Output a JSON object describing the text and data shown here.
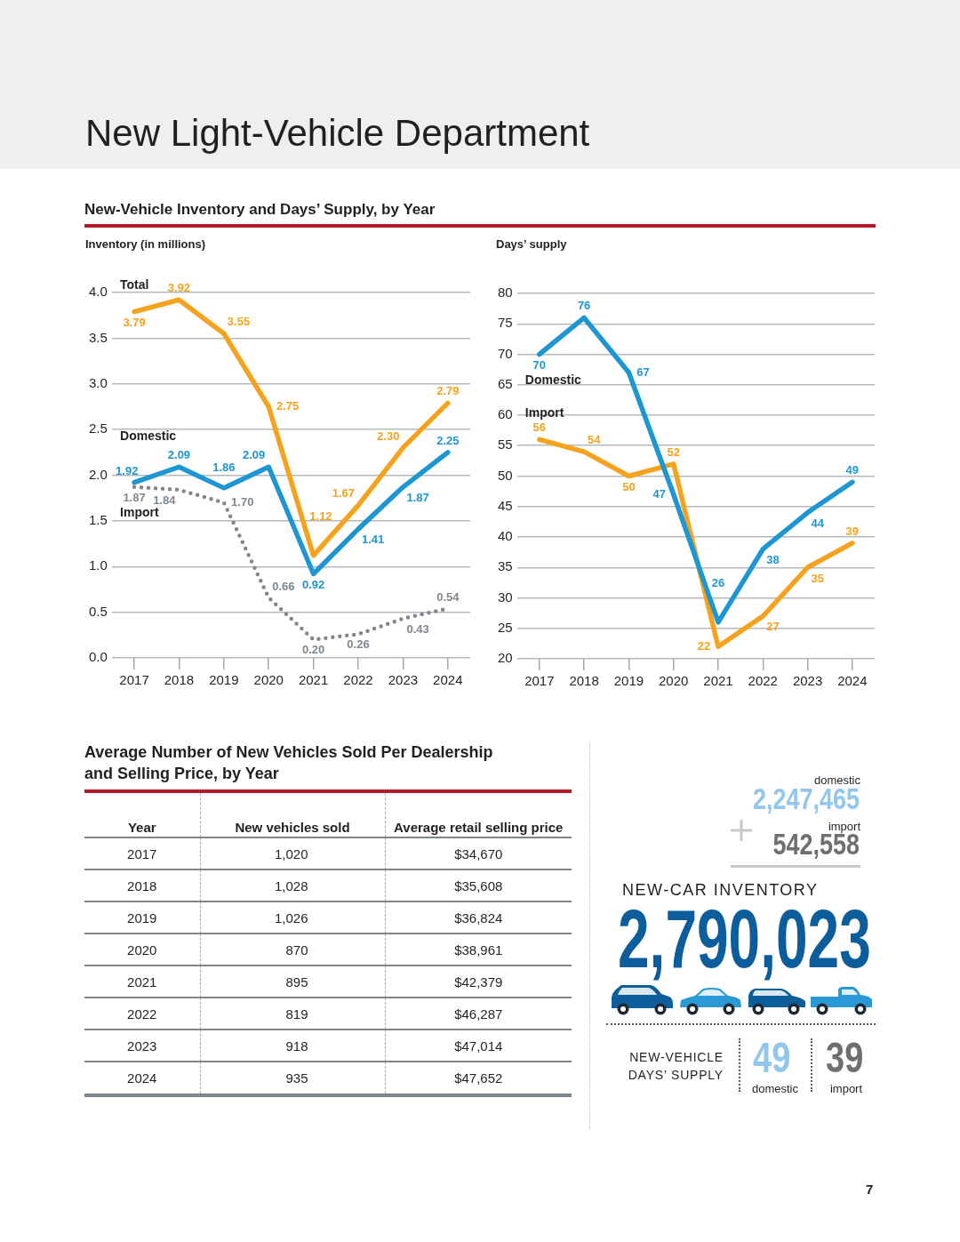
{
  "chart_data": [
    {
      "type": "line",
      "title": "New Light-Vehicle Department",
      "subtitle": "New-Vehicle Inventory and Days’ Supply, by Year",
      "ylabel": "Inventory (in millions)",
      "categories": [
        "2017",
        "2018",
        "2019",
        "2020",
        "2021",
        "2022",
        "2023",
        "2024"
      ],
      "series": [
        {
          "name": "Total",
          "color": "#f6a21c",
          "values": [
            3.79,
            3.92,
            3.55,
            2.75,
            1.12,
            1.67,
            2.3,
            2.79
          ],
          "value_labels": [
            "3.79",
            "3.92",
            "3.55",
            "2.75",
            "1.12",
            "1.67",
            "2.30",
            "2.79"
          ]
        },
        {
          "name": "Domestic",
          "color": "#1e96d2",
          "values": [
            1.92,
            2.09,
            1.86,
            2.09,
            0.92,
            1.41,
            1.87,
            2.25
          ],
          "value_labels": [
            "1.92",
            "2.09",
            "1.86",
            "2.09",
            "0.92",
            "1.41",
            "1.87",
            "2.25"
          ]
        },
        {
          "name": "Import",
          "color": "#80878d",
          "line_style": "dotted",
          "values": [
            1.87,
            1.84,
            1.7,
            0.66,
            0.2,
            0.26,
            0.43,
            0.54
          ],
          "value_labels": [
            "1.87",
            "1.84",
            "1.70",
            "0.66",
            "0.20",
            "0.26",
            "0.43",
            "0.54"
          ]
        }
      ],
      "ylim": [
        0,
        4
      ],
      "yticks": [
        {
          "value": 0,
          "label": "0.0"
        },
        0.5,
        {
          "value": 1,
          "label": "1.0"
        },
        1.5,
        {
          "value": 2,
          "label": "2.0"
        },
        2.5,
        {
          "value": 3,
          "label": "3.0"
        },
        3.5,
        {
          "value": 4,
          "label": "4.0"
        }
      ],
      "grid": "y",
      "line_style": "solid"
    },
    {
      "type": "line",
      "ylabel": "Days’ supply",
      "categories": [
        "2017",
        "2018",
        "2019",
        "2020",
        "2021",
        "2022",
        "2023",
        "2024"
      ],
      "series": [
        {
          "name": "Domestic",
          "color": "#1e96d2",
          "values": [
            70,
            76,
            67,
            47,
            26,
            38,
            44,
            49
          ]
        },
        {
          "name": "Import",
          "color": "#f6a21c",
          "values": [
            56,
            54,
            50,
            52,
            22,
            27,
            35,
            39
          ]
        }
      ],
      "ylim": [
        20,
        80
      ],
      "yticks": [
        20,
        25,
        30,
        35,
        40,
        45,
        50,
        55,
        60,
        65,
        70,
        75,
        80
      ],
      "grid": "y",
      "data_labels": true,
      "line_style": "solid"
    },
    {
      "type": "heatmap",
      "title": "Average Number of New Vehicles Sold Per Dealership and Selling Price, by Year",
      "ylabel": "Year",
      "categories": [
        "New vehicles sold",
        "Average retail selling price"
      ],
      "y_categories": [
        "2017",
        "2018",
        "2019",
        "2020",
        "2021",
        "2022",
        "2023",
        "2024"
      ],
      "cells": [
        [
          1020,
          34670
        ],
        [
          1028,
          35608
        ],
        [
          1026,
          36824
        ],
        [
          870,
          38961
        ],
        [
          895,
          42379
        ],
        [
          819,
          46287
        ],
        [
          918,
          47014
        ],
        [
          935,
          47652
        ]
      ],
      "cell_labels": [
        [
          "1,020",
          "$34,670"
        ],
        [
          "1,028",
          "$35,608"
        ],
        [
          "1,026",
          "$36,824"
        ],
        [
          "870",
          "$38,961"
        ],
        [
          "895",
          "$42,379"
        ],
        [
          "819",
          "$46,287"
        ],
        [
          "918",
          "$47,014"
        ],
        [
          "935",
          "$47,652"
        ]
      ]
    },
    {
      "type": "other",
      "title": "NEW-CAR INVENTORY",
      "annotations": [
        "domestic",
        "2,247,465",
        "import",
        "542,558",
        "2,790,023",
        "NEW-VEHICLE DAYS’ SUPPLY",
        "49",
        "domestic",
        "39",
        "import",
        "7"
      ]
    }
  ]
}
